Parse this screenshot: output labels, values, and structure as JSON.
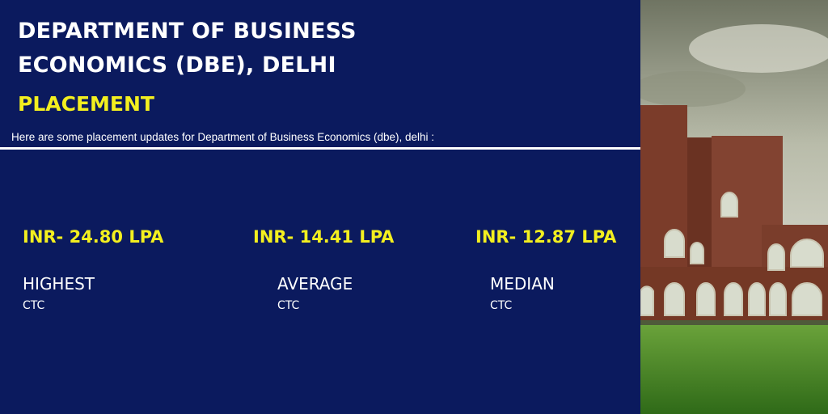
{
  "header": {
    "title": "DEPARTMENT OF BUSINESS ECONOMICS (DBE), DELHI",
    "subtitle": "PLACEMENT",
    "intro": "Here are some placement updates for Department of Business Economics (dbe), delhi :"
  },
  "stats": [
    {
      "value": "INR- 24.80 LPA",
      "label": "HIGHEST",
      "sub": "CTC"
    },
    {
      "value": "INR- 14.41 LPA",
      "label": "AVERAGE",
      "sub": "CTC"
    },
    {
      "value": "INR- 12.87 LPA",
      "label": "MEDIAN",
      "sub": "CTC"
    }
  ]
}
